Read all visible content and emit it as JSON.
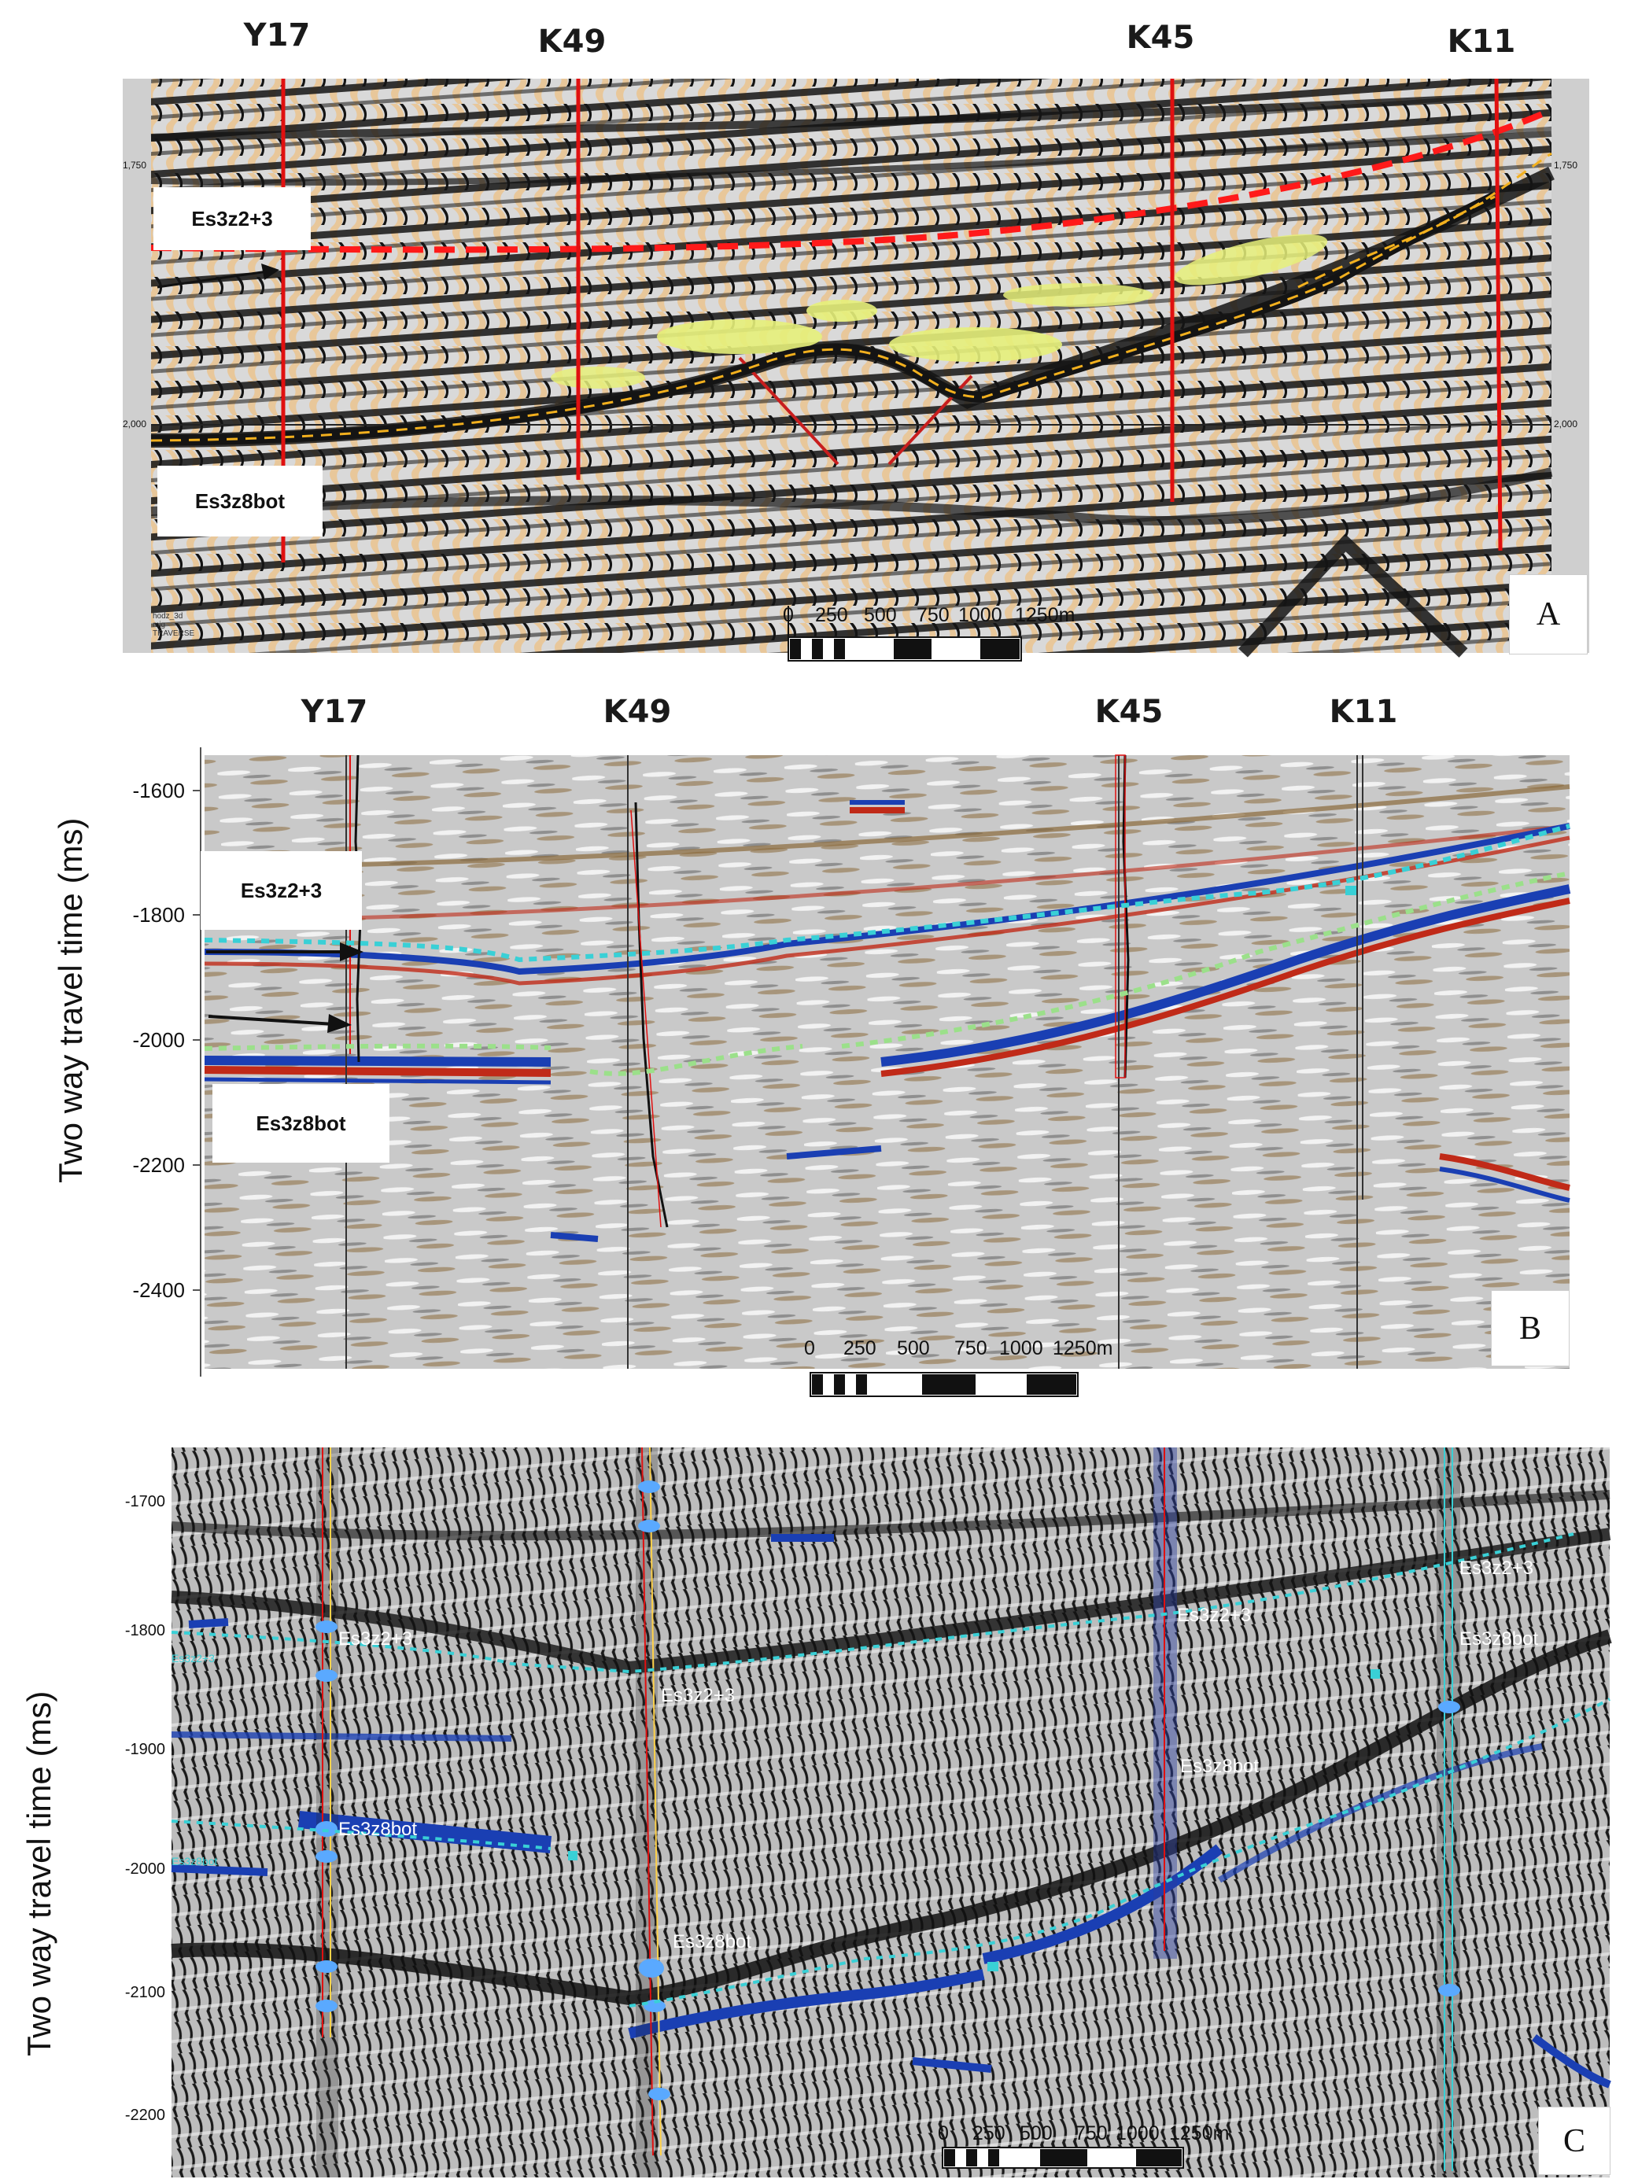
{
  "panels": {
    "a": {
      "letter": "A",
      "wells": [
        "Y17",
        "K49",
        "K45",
        "K11"
      ],
      "horizon_top": "Es3z2+3",
      "horizon_bottom": "Es3z8bot",
      "scale": {
        "ticks": [
          "0",
          "250",
          "500",
          "750",
          "1000",
          "1250m"
        ]
      },
      "small_ticks": {
        "left_top": "1,750",
        "left_bottom": "2,000",
        "right_top": "1,750",
        "right_bottom": "2,000"
      },
      "corner_note": [
        "hodz_3d",
        "mig",
        "TRAVERSE"
      ]
    },
    "b": {
      "letter": "B",
      "wells": [
        "Y17",
        "K49",
        "K45",
        "K11"
      ],
      "horizon_top": "Es3z2+3",
      "horizon_bottom": "Es3z8bot",
      "y_title": "Two way travel time (ms)",
      "y_ticks": [
        "-1600",
        "-1800",
        "-2000",
        "-2200",
        "-2400"
      ],
      "scale": {
        "ticks": [
          "0",
          "250",
          "500",
          "750",
          "1000",
          "1250m"
        ]
      }
    },
    "c": {
      "letter": "C",
      "y_title": "Two way travel time (ms)",
      "y_ticks": [
        "-1700",
        "-1800",
        "-1900",
        "-2000",
        "-2100",
        "-2200"
      ],
      "horizon_labels": {
        "y17_top": "Es3z2+3",
        "y17_bot": "Es3z8bot",
        "k49_top": "Es3z2+3",
        "k49_bot": "Es3z8bot",
        "k45_top": "Es3z2+3",
        "k45_bot": "Es3z8bot",
        "k11_top": "Es3z2+3",
        "k11_bot": "Es3z8bot",
        "left_top": "Es3z2+3",
        "left_bot": "Es3z8bot"
      },
      "scale": {
        "ticks": [
          "0",
          "250",
          "500",
          "750",
          "1000",
          "1250m"
        ]
      }
    }
  },
  "colors": {
    "seismic_tan": "#e8c79a",
    "seismic_black": "#141414",
    "well_red": "#e01010",
    "horizon_red_dash": "#ff1a1a",
    "horizon_yellow_dash": "#f2b01e",
    "anomaly_yellow": "#e6f07a",
    "horizon_cyan": "#39d0d6",
    "horizon_green": "#9be08a",
    "amp_blue": "#1a3fb3",
    "amp_red": "#c02a18",
    "amp_brown": "#8a6a3a"
  }
}
